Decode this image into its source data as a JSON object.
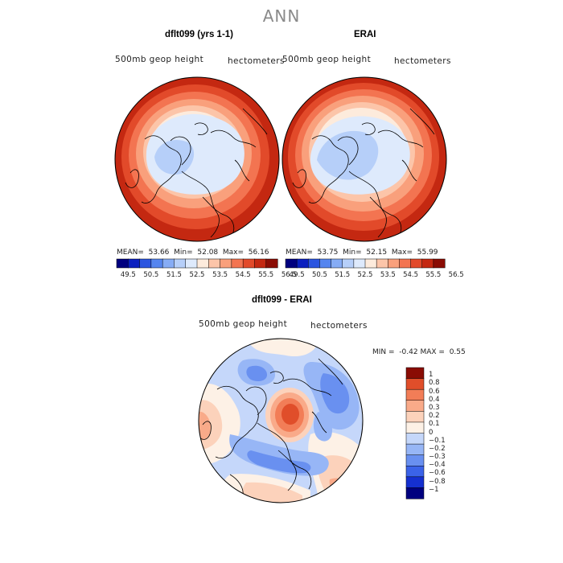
{
  "season": "ANN",
  "colors": {
    "abs": [
      "#00007f",
      "#0a1fbf",
      "#2b55e0",
      "#5585ef",
      "#86acf5",
      "#b6cff9",
      "#deeafc",
      "#fdebdc",
      "#fcc5a9",
      "#f9a07c",
      "#f37451",
      "#e24a2a",
      "#c42811",
      "#8a0c04"
    ],
    "diff": [
      "#00007f",
      "#1530d0",
      "#3b63e8",
      "#6990f0",
      "#97b6f6",
      "#c5d7fa",
      "#fdf1e6",
      "#fcd2bb",
      "#f9aa89",
      "#f27d57",
      "#e04e2a",
      "#8a0c04"
    ]
  },
  "panels": [
    {
      "title": "dflt099 (yrs 1-1)",
      "subtitle_left": "500mb geop height",
      "subtitle_right": "hectometers",
      "stats": {
        "mean_label": "MEAN=",
        "mean": "53.66",
        "min_label": "Min=",
        "min": "52.08",
        "max_label": "Max=",
        "max": "56.16"
      }
    },
    {
      "title": "ERAI",
      "subtitle_left": "500mb geop height",
      "subtitle_right": "hectometers",
      "stats": {
        "mean_label": "MEAN=",
        "mean": "53.75",
        "min_label": "Min=",
        "min": "52.15",
        "max_label": "Max=",
        "max": "55.99"
      }
    }
  ],
  "abs_colorbar_labels": [
    "49.5",
    "50.5",
    "51.5",
    "52.5",
    "53.5",
    "54.5",
    "55.5",
    "56.5"
  ],
  "diff_panel": {
    "title": "dflt099 - ERAI",
    "subtitle_left": "500mb geop height",
    "subtitle_right": "hectometers",
    "min_label": "MIN =",
    "min": "-0.42",
    "max_label": "MAX =",
    "max": "0.55",
    "colorbar_labels": [
      "1",
      "0.8",
      "0.6",
      "0.4",
      "0.3",
      "0.2",
      "0.1",
      "0",
      "−0.1",
      "−0.2",
      "−0.3",
      "−0.4",
      "−0.6",
      "−0.8",
      "−1"
    ]
  }
}
